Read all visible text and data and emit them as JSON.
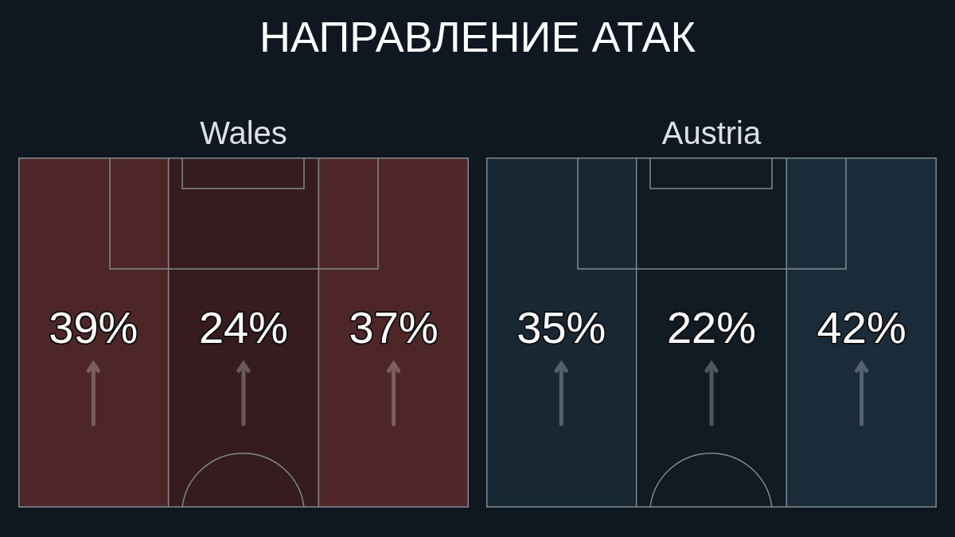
{
  "chart_data": [
    {
      "type": "other",
      "title": "НАПРАВЛЕНИЕ АТАК"
    },
    {
      "type": "other",
      "title": "Wales",
      "categories": [
        null,
        null,
        null
      ],
      "values": [
        39,
        24,
        37
      ],
      "value_labels": [
        "39%",
        "24%",
        "37%"
      ],
      "colors": [
        "#4f2627",
        "#361c1e",
        "#4f2627"
      ]
    },
    {
      "type": "other",
      "title": "Austria",
      "categories": [
        null,
        null,
        null
      ],
      "values": [
        35,
        22,
        42
      ],
      "value_labels": [
        "35%",
        "22%",
        "42%"
      ],
      "colors": [
        "#172834",
        "#111b24",
        "#1a2c39"
      ]
    }
  ]
}
